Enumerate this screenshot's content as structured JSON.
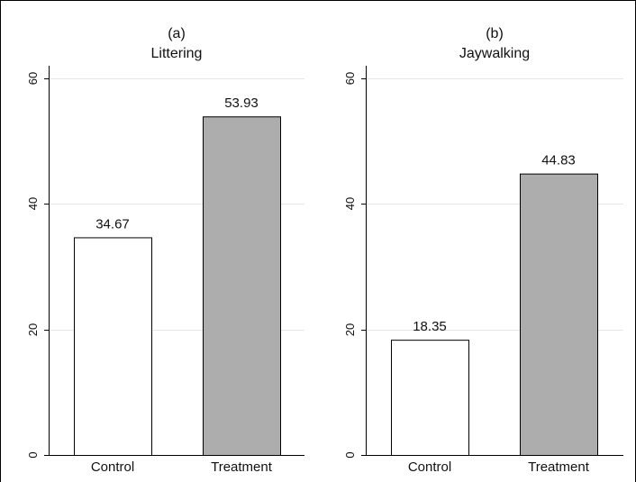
{
  "chart_data": [
    {
      "type": "bar",
      "title": "(a)",
      "subtitle": "Littering",
      "categories": [
        "Control",
        "Treatment"
      ],
      "values": [
        34.67,
        53.93
      ],
      "data_labels": [
        "34.67",
        "53.93"
      ],
      "bar_colors": [
        "#ffffff",
        "#adadad"
      ],
      "ylim": [
        0,
        62
      ],
      "yticks": [
        0,
        20,
        40,
        60
      ],
      "grid": true
    },
    {
      "type": "bar",
      "title": "(b)",
      "subtitle": "Jaywalking",
      "categories": [
        "Control",
        "Treatment"
      ],
      "values": [
        18.35,
        44.83
      ],
      "data_labels": [
        "18.35",
        "44.83"
      ],
      "bar_colors": [
        "#ffffff",
        "#adadad"
      ],
      "ylim": [
        0,
        62
      ],
      "yticks": [
        0,
        20,
        40,
        60
      ],
      "grid": true
    }
  ],
  "colors": {
    "grid": "#e6e6e6",
    "axis": "#000000",
    "bar_edge": "#000000",
    "frame": "#000000"
  }
}
